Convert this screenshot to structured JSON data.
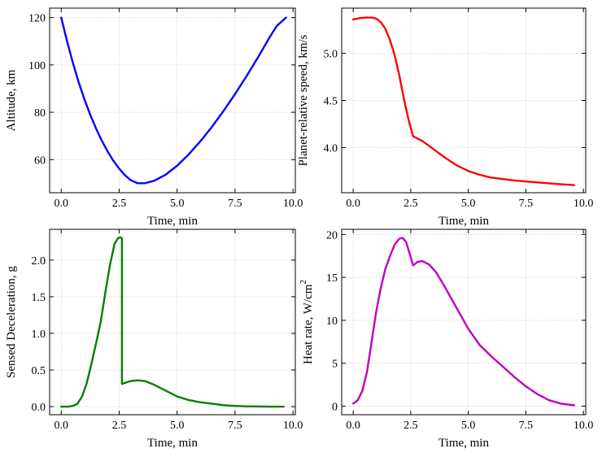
{
  "chart_data": [
    {
      "type": "line",
      "xlabel": "Time, min",
      "ylabel": "Altitude, km",
      "xlim": [
        -0.5,
        10.1
      ],
      "ylim": [
        46,
        124
      ],
      "xticks": [
        0,
        2.5,
        5,
        7.5,
        10
      ],
      "xtick_labels": [
        "0.0",
        "2.5",
        "5.0",
        "7.5",
        "10.0"
      ],
      "yticks": [
        60,
        80,
        100,
        120
      ],
      "ytick_labels": [
        "60",
        "80",
        "100",
        "120"
      ],
      "grid": true,
      "colors": {
        "line": "#0000ff"
      },
      "series": [
        {
          "x": [
            0,
            0.25,
            0.5,
            0.75,
            1.0,
            1.25,
            1.5,
            1.75,
            2.0,
            2.25,
            2.5,
            2.75,
            3.0,
            3.3,
            3.6,
            4.0,
            4.5,
            5.0,
            5.5,
            6.0,
            6.5,
            7.0,
            7.5,
            8.0,
            8.5,
            9.0,
            9.3,
            9.7
          ],
          "y": [
            120,
            110.1,
            101,
            92.8,
            85.5,
            79,
            73.2,
            68,
            63.5,
            59.5,
            56.2,
            53.4,
            51.3,
            50,
            50,
            51,
            53.6,
            57.4,
            62.2,
            67.7,
            73.8,
            80.5,
            87.7,
            95.3,
            103.4,
            111.8,
            116.5,
            120
          ]
        }
      ]
    },
    {
      "type": "line",
      "xlabel": "Time, min",
      "ylabel": "Planet-relative speed, km/s",
      "xlim": [
        -0.5,
        10.1
      ],
      "ylim": [
        3.52,
        5.48
      ],
      "xticks": [
        0,
        2.5,
        5,
        7.5,
        10
      ],
      "xtick_labels": [
        "0.0",
        "2.5",
        "5.0",
        "7.5",
        "10.0"
      ],
      "yticks": [
        4.0,
        4.5,
        5.0
      ],
      "ytick_labels": [
        "4.0",
        "4.5",
        "5.0"
      ],
      "grid": true,
      "colors": {
        "line": "#ff0000"
      },
      "series": [
        {
          "x": [
            0,
            0.3,
            0.6,
            0.8,
            1.0,
            1.2,
            1.4,
            1.6,
            1.8,
            2.0,
            2.2,
            2.4,
            2.6,
            3.0,
            3.5,
            4.0,
            4.5,
            5.0,
            5.5,
            6.0,
            7.0,
            8.0,
            9.0,
            9.6
          ],
          "y": [
            5.36,
            5.375,
            5.38,
            5.38,
            5.37,
            5.33,
            5.26,
            5.14,
            4.98,
            4.77,
            4.52,
            4.3,
            4.12,
            4.07,
            3.98,
            3.89,
            3.81,
            3.75,
            3.71,
            3.68,
            3.65,
            3.63,
            3.61,
            3.6
          ]
        }
      ]
    },
    {
      "type": "line",
      "xlabel": "Time, min",
      "ylabel": "Sensed Deceleration, g",
      "xlim": [
        -0.5,
        10.1
      ],
      "ylim": [
        -0.11,
        2.42
      ],
      "xticks": [
        0,
        2.5,
        5,
        7.5,
        10
      ],
      "xtick_labels": [
        "0.0",
        "2.5",
        "5.0",
        "7.5",
        "10.0"
      ],
      "yticks": [
        0.0,
        0.5,
        1.0,
        1.5,
        2.0
      ],
      "ytick_labels": [
        "0.0",
        "0.5",
        "1.0",
        "1.5",
        "2.0"
      ],
      "grid": true,
      "colors": {
        "line": "#008000"
      },
      "series": [
        {
          "x": [
            0,
            0.3,
            0.5,
            0.7,
            0.9,
            1.1,
            1.3,
            1.5,
            1.7,
            1.9,
            2.1,
            2.3,
            2.45,
            2.55,
            2.62,
            2.62,
            2.8,
            3.0,
            3.3,
            3.6,
            4.0,
            4.5,
            5.0,
            5.5,
            6.0,
            6.5,
            7.0,
            7.5,
            8.0,
            9.0,
            9.6
          ],
          "y": [
            0.0,
            0.0,
            0.01,
            0.04,
            0.14,
            0.32,
            0.58,
            0.86,
            1.15,
            1.55,
            1.93,
            2.22,
            2.3,
            2.31,
            2.3,
            0.31,
            0.33,
            0.35,
            0.36,
            0.35,
            0.3,
            0.22,
            0.14,
            0.09,
            0.06,
            0.04,
            0.02,
            0.01,
            0.005,
            0.0,
            0.0
          ]
        }
      ]
    },
    {
      "type": "line",
      "xlabel": "Time, min",
      "ylabel": "Heat rate, W/cm",
      "ylabel_superscript": "2",
      "xlim": [
        -0.5,
        10.1
      ],
      "ylim": [
        -1.0,
        20.6
      ],
      "xticks": [
        0,
        2.5,
        5,
        7.5,
        10
      ],
      "xtick_labels": [
        "0.0",
        "2.5",
        "5.0",
        "7.5",
        "10.0"
      ],
      "yticks": [
        0,
        5,
        10,
        15,
        20
      ],
      "ytick_labels": [
        "0",
        "5",
        "10",
        "15",
        "20"
      ],
      "grid": true,
      "colors": {
        "line": "#bf00bf"
      },
      "series": [
        {
          "x": [
            0,
            0.2,
            0.4,
            0.6,
            0.8,
            1.0,
            1.2,
            1.4,
            1.6,
            1.8,
            2.0,
            2.15,
            2.3,
            2.45,
            2.6,
            2.8,
            3.0,
            3.3,
            3.6,
            4.0,
            4.5,
            5.0,
            5.5,
            6.0,
            6.5,
            7.0,
            7.5,
            8.0,
            8.5,
            9.0,
            9.6
          ],
          "y": [
            0.3,
            0.7,
            1.8,
            4.0,
            7.5,
            11.0,
            13.8,
            16.0,
            17.5,
            18.8,
            19.5,
            19.6,
            19.1,
            17.8,
            16.4,
            16.8,
            16.9,
            16.5,
            15.6,
            13.8,
            11.4,
            9.0,
            7.1,
            5.8,
            4.6,
            3.4,
            2.3,
            1.4,
            0.7,
            0.3,
            0.1
          ]
        }
      ]
    }
  ]
}
